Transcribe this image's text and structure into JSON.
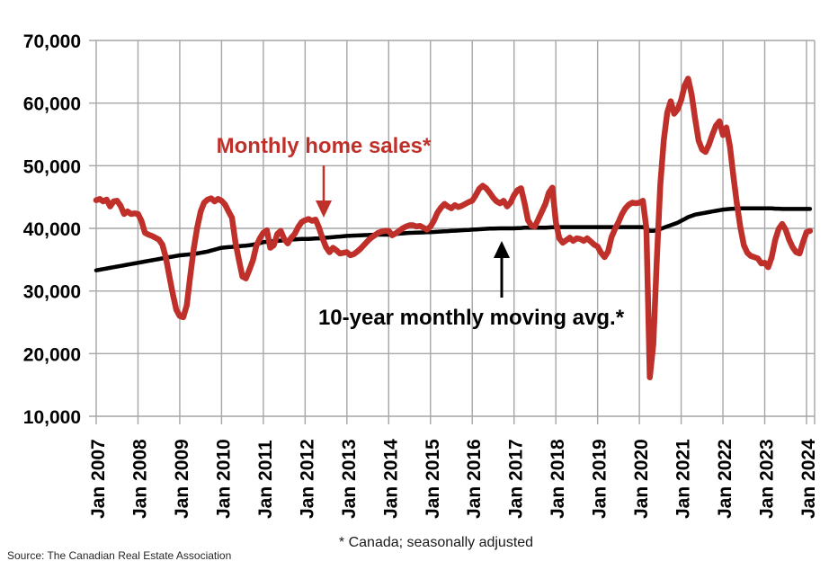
{
  "annotations": {
    "sales_label": "Monthly home sales*",
    "avg_label": "10-year monthly moving avg.*"
  },
  "footnote": "* Canada; seasonally adjusted",
  "source": "Source: The Canadian Real Estate Association",
  "colors": {
    "sales": "#c0302a",
    "avg": "#000000",
    "grid": "#a6a6a6",
    "text": "#000000"
  },
  "chart_data": {
    "type": "line",
    "title": "",
    "xlabel": "",
    "ylabel": "",
    "grid": true,
    "legend_position": "inline-annotations",
    "ylim": [
      10000,
      70000
    ],
    "y_ticks": [
      70000,
      60000,
      50000,
      40000,
      30000,
      20000,
      10000
    ],
    "y_tick_labels": [
      "70,000",
      "60,000",
      "50,000",
      "40,000",
      "30,000",
      "20,000",
      "10,000"
    ],
    "x_tick_labels": [
      "Jan 2007",
      "Jan 2008",
      "Jan 2009",
      "Jan 2010",
      "Jan 2011",
      "Jan 2012",
      "Jan 2013",
      "Jan 2014",
      "Jan 2015",
      "Jan 2016",
      "Jan 2017",
      "Jan 2018",
      "Jan 2019",
      "Jan 2020",
      "Jan 2021",
      "Jan 2022",
      "Jan 2023",
      "Jan 2024"
    ],
    "x_start": "Jan 2007",
    "x_end": "Feb 2024",
    "x_unit": "month",
    "series": [
      {
        "name": "Monthly home sales (Canada, seasonally adjusted)",
        "color_key": "sales",
        "values": [
          44500,
          44700,
          44300,
          44600,
          43500,
          44300,
          44400,
          43600,
          42300,
          42700,
          42300,
          42400,
          42300,
          41200,
          39300,
          39000,
          38800,
          38500,
          38200,
          37400,
          35300,
          32400,
          29500,
          27000,
          26000,
          25800,
          27700,
          32400,
          36700,
          40100,
          42700,
          44100,
          44600,
          44800,
          44300,
          44700,
          44400,
          43800,
          42700,
          41700,
          37700,
          34900,
          32300,
          32000,
          33400,
          34900,
          37200,
          38400,
          39300,
          39700,
          36900,
          37300,
          39100,
          39600,
          38300,
          37600,
          38500,
          39100,
          40200,
          41000,
          41300,
          41500,
          41200,
          41400,
          40100,
          38400,
          37000,
          36200,
          36900,
          36500,
          36000,
          36100,
          36200,
          35700,
          35900,
          36300,
          36800,
          37400,
          38000,
          38500,
          38900,
          39300,
          39500,
          39600,
          39600,
          38900,
          39200,
          39600,
          40000,
          40300,
          40500,
          40500,
          40300,
          40400,
          40100,
          39800,
          40300,
          41200,
          42500,
          43300,
          43900,
          43500,
          43200,
          43700,
          43400,
          43600,
          43900,
          44200,
          44400,
          45300,
          46300,
          46800,
          46400,
          45700,
          44900,
          44300,
          44000,
          44400,
          43500,
          44100,
          45300,
          46100,
          46400,
          44100,
          41300,
          40400,
          40300,
          41500,
          42700,
          43900,
          45700,
          46500,
          41000,
          38400,
          37700,
          38100,
          38500,
          38000,
          38400,
          38300,
          38000,
          38400,
          37900,
          37400,
          37100,
          36100,
          35400,
          36300,
          38600,
          39900,
          41000,
          42300,
          43200,
          43800,
          44100,
          44000,
          44100,
          44400,
          40000,
          16200,
          21500,
          35000,
          47000,
          54000,
          58500,
          60300,
          58300,
          59000,
          60500,
          62800,
          63900,
          61400,
          57500,
          54000,
          52600,
          52200,
          53400,
          55000,
          56400,
          57100,
          54900,
          56100,
          53100,
          48300,
          44000,
          40200,
          37300,
          36100,
          35600,
          35400,
          35200,
          34400,
          34500,
          33800,
          35400,
          38100,
          39900,
          40700,
          39800,
          38200,
          37000,
          36200,
          36000,
          37800,
          39400,
          39600
        ]
      },
      {
        "name": "10-year monthly moving average",
        "color_key": "avg",
        "values": [
          33300,
          33400,
          33500,
          33600,
          33700,
          33800,
          33900,
          34000,
          34100,
          34200,
          34300,
          34400,
          34500,
          34600,
          34700,
          34800,
          34900,
          35000,
          35100,
          35200,
          35300,
          35400,
          35500,
          35600,
          35700,
          35750,
          35800,
          35850,
          35900,
          36000,
          36100,
          36200,
          36300,
          36450,
          36600,
          36750,
          36900,
          36950,
          37000,
          37050,
          37100,
          37150,
          37200,
          37250,
          37300,
          37400,
          37500,
          37650,
          37800,
          37850,
          37900,
          37950,
          38000,
          38050,
          38100,
          38150,
          38200,
          38250,
          38280,
          38300,
          38300,
          38320,
          38350,
          38380,
          38400,
          38450,
          38500,
          38550,
          38600,
          38650,
          38700,
          38750,
          38800,
          38820,
          38850,
          38870,
          38900,
          38920,
          38940,
          38960,
          38980,
          39000,
          39000,
          39000,
          39000,
          39050,
          39100,
          39150,
          39200,
          39250,
          39280,
          39300,
          39320,
          39340,
          39360,
          39380,
          39400,
          39430,
          39470,
          39500,
          39530,
          39560,
          39600,
          39630,
          39660,
          39700,
          39730,
          39760,
          39800,
          39830,
          39860,
          39900,
          39930,
          39950,
          39970,
          39990,
          40000,
          40000,
          40000,
          40000,
          40000,
          40030,
          40060,
          40100,
          40100,
          40100,
          40100,
          40100,
          40100,
          40120,
          40150,
          40180,
          40200,
          40200,
          40200,
          40200,
          40200,
          40200,
          40200,
          40200,
          40200,
          40200,
          40200,
          40200,
          40200,
          40200,
          40200,
          40200,
          40200,
          40200,
          40200,
          40200,
          40200,
          40200,
          40200,
          40200,
          40200,
          40200,
          40000,
          39600,
          39600,
          39700,
          39900,
          40100,
          40300,
          40500,
          40700,
          40900,
          41200,
          41500,
          41800,
          42000,
          42200,
          42300,
          42400,
          42500,
          42600,
          42700,
          42800,
          42900,
          43000,
          43050,
          43100,
          43150,
          43200,
          43200,
          43200,
          43200,
          43200,
          43200,
          43200,
          43200,
          43200,
          43200,
          43200,
          43150,
          43150,
          43100,
          43100,
          43100,
          43100,
          43100,
          43100,
          43100,
          43100,
          43100
        ]
      }
    ]
  }
}
